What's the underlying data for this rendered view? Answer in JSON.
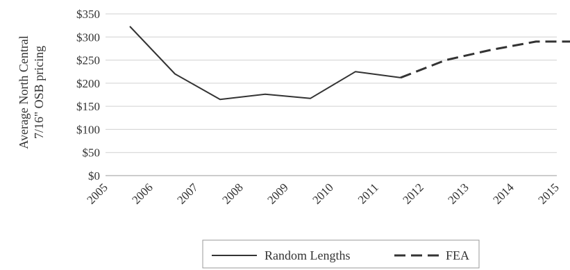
{
  "chart_data": {
    "type": "line",
    "ylabel_lines": [
      "Average North Central",
      "7/16\" OSB pricing"
    ],
    "x_ticks": [
      "2005",
      "2006",
      "2007",
      "2008",
      "2009",
      "2010",
      "2011",
      "2012",
      "2013",
      "2014",
      "2015"
    ],
    "y_ticks": [
      "$0",
      "$50",
      "$100",
      "$150",
      "$200",
      "$250",
      "$300",
      "$350"
    ],
    "ylim": [
      0,
      350
    ],
    "grid": "horizontal",
    "legend_position": "bottom",
    "series": [
      {
        "name": "Random Lengths",
        "style": "solid",
        "color": "#333333",
        "x": [
          2005,
          2006,
          2007,
          2008,
          2009,
          2010,
          2011
        ],
        "values": [
          323,
          220,
          165,
          176,
          167,
          225,
          212
        ]
      },
      {
        "name": "FEA",
        "style": "dashed",
        "color": "#333333",
        "x": [
          2011,
          2012,
          2013,
          2014,
          2015
        ],
        "values": [
          212,
          250,
          272,
          290,
          290
        ]
      }
    ]
  }
}
